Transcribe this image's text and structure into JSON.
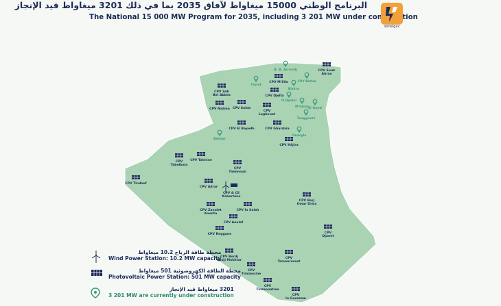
{
  "header": {
    "title_ar": "البرنامج الوطني 15000 ميغاواط لآفاق 2035 بما في ذلك 3201 ميغاواط قيد الإنجاز",
    "title_en": "The National 15 000 MW Program for 2035, including 3 201 MW under construction",
    "logo_text": "sonelgaz"
  },
  "colors": {
    "land": "#a9d3b3",
    "land_stroke": "#ffffff",
    "text": "#1c2b57",
    "solar_panel": "#1c2b57",
    "construction_pin": "#3a9a7e"
  },
  "legend": {
    "wind": {
      "ar": "محطة طاقة الرياح 10.2 ميغاواط",
      "en": "Wind Power Station: 10.2 MW capacity",
      "icon": "wind-turbine-icon"
    },
    "solar": {
      "ar": "محطة الطاقة الكهروضوئية 501 ميغاواط",
      "en": "Photovoltaic Power Station: 501 MW capacity",
      "icon": "solar-panel-icon"
    },
    "construction": {
      "ar": "3201 ميغاواط قيد الإنجاز",
      "en": "3 201 MW are currently under construction",
      "icon": "location-pin-icon"
    }
  },
  "stations": [
    {
      "label": "CPV Souk\nAhras",
      "icon": "solar"
    },
    {
      "label": "B. B. Arreridj",
      "icon": "pin"
    },
    {
      "label": "CPV Sidi\nBel Abbes",
      "icon": "solar"
    },
    {
      "label": "Tiaret",
      "icon": "pin"
    },
    {
      "label": "CPV M'Sila",
      "icon": "solar"
    },
    {
      "label": "CPV Batna",
      "icon": "pin"
    },
    {
      "label": "Biskra",
      "icon": "pin"
    },
    {
      "label": "CPV Djelfa",
      "icon": "solar"
    },
    {
      "label": "O.Djellal",
      "icon": "pin"
    },
    {
      "label": "M'Ghair",
      "icon": "pin"
    },
    {
      "label": "El Oued",
      "icon": "pin"
    },
    {
      "label": "CPV Naâma",
      "icon": "solar"
    },
    {
      "label": "CPV Saida",
      "icon": "solar"
    },
    {
      "label": "CPV\nLaghouat",
      "icon": "solar"
    },
    {
      "label": "Touggourt",
      "icon": "pin"
    },
    {
      "label": "CPV El Bayedh",
      "icon": "solar"
    },
    {
      "label": "CPV Ghardaia",
      "icon": "solar"
    },
    {
      "label": "Ouargla",
      "icon": "pin"
    },
    {
      "label": "Béchar",
      "icon": "pin"
    },
    {
      "label": "CPV Hâjira",
      "icon": "solar"
    },
    {
      "label": "CPV\nTabelbala",
      "icon": "solar"
    },
    {
      "label": "CPV Talmine",
      "icon": "solar"
    },
    {
      "label": "CPV\nTimimoun",
      "icon": "solar"
    },
    {
      "label": "CPV Tindouf",
      "icon": "solar"
    },
    {
      "label": "CPV Adrar",
      "icon": "solar"
    },
    {
      "label": "CPV & CE\nKaberténe",
      "icon": "wind"
    },
    {
      "label": "CPV Borj\nOmar Driss",
      "icon": "solar"
    },
    {
      "label": "CPV Zaouiet\nKounta",
      "icon": "solar"
    },
    {
      "label": "CPV In Salah",
      "icon": "solar"
    },
    {
      "label": "CPV Aoulef",
      "icon": "solar"
    },
    {
      "label": "CPV\nDjanet",
      "icon": "solar"
    },
    {
      "label": "CPV Reggane",
      "icon": "solar"
    },
    {
      "label": "CPV Bordj\nBadji Mokhtar",
      "icon": "solar"
    },
    {
      "label": "CPV\nTamanrasset",
      "icon": "solar"
    },
    {
      "label": "CPV\nTimiaouine",
      "icon": "solar"
    },
    {
      "label": "CPV\nTinzaouatine",
      "icon": "solar"
    },
    {
      "label": "CPV\nIn Guezzam",
      "icon": "solar"
    }
  ]
}
